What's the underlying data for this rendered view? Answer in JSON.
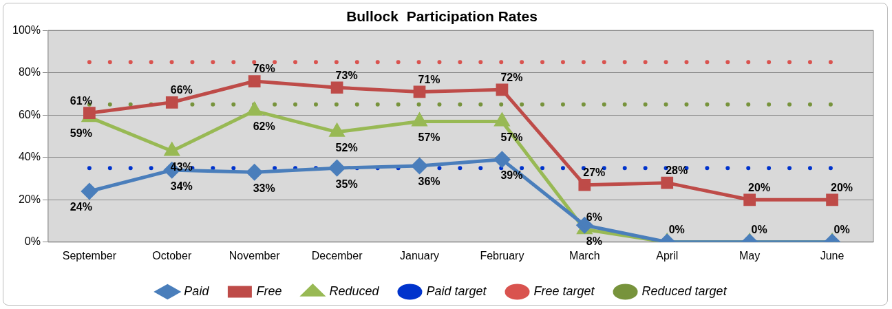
{
  "chart_data": {
    "type": "line",
    "title": "Bullock  Participation Rates",
    "categories": [
      "September",
      "October",
      "November",
      "December",
      "January",
      "February",
      "March",
      "April",
      "May",
      "June"
    ],
    "series": [
      {
        "name": "Paid",
        "color": "#4a7ebb",
        "marker": "diamond",
        "values": [
          24,
          34,
          33,
          35,
          36,
          39,
          8,
          0,
          0,
          0
        ],
        "value_labels": [
          "24%",
          "34%",
          "33%",
          "35%",
          "36%",
          "39%",
          "8%",
          "0%",
          "0%",
          "0%"
        ]
      },
      {
        "name": "Free",
        "color": "#be4b48",
        "marker": "square",
        "values": [
          61,
          66,
          76,
          73,
          71,
          72,
          27,
          28,
          20,
          20
        ],
        "value_labels": [
          "61%",
          "66%",
          "76%",
          "73%",
          "71%",
          "72%",
          "27%",
          "28%",
          "20%",
          "20%"
        ]
      },
      {
        "name": "Reduced",
        "color": "#98b954",
        "marker": "triangle",
        "values": [
          59,
          43,
          62,
          52,
          57,
          57,
          6,
          0,
          0,
          0
        ],
        "value_labels": [
          "59%",
          "43%",
          "62%",
          "52%",
          "57%",
          "57%",
          "6%",
          null,
          null,
          null
        ]
      },
      {
        "name": "Paid target",
        "color": "#0033cc",
        "marker": "none",
        "line_style": "dotted",
        "values": [
          35,
          35,
          35,
          35,
          35,
          35,
          35,
          35,
          35,
          35
        ]
      },
      {
        "name": "Free target",
        "color": "#d9534f",
        "marker": "none",
        "line_style": "dotted",
        "values": [
          85,
          85,
          85,
          85,
          85,
          85,
          85,
          85,
          85,
          85
        ]
      },
      {
        "name": "Reduced target",
        "color": "#77933c",
        "marker": "none",
        "line_style": "dotted",
        "values": [
          65,
          65,
          65,
          65,
          65,
          65,
          65,
          65,
          65,
          65
        ]
      }
    ],
    "ylim": [
      0,
      100
    ],
    "yticks": [
      {
        "value": 0,
        "label": "0%"
      },
      {
        "value": 20,
        "label": "20%"
      },
      {
        "value": 40,
        "label": "40%"
      },
      {
        "value": 60,
        "label": "60%"
      },
      {
        "value": 80,
        "label": "80%"
      },
      {
        "value": 100,
        "label": "100%"
      }
    ],
    "grid": "y",
    "legend": "bottom"
  }
}
